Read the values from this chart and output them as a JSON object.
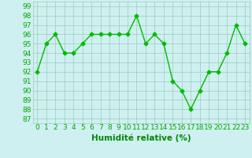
{
  "x": [
    0,
    1,
    2,
    3,
    4,
    5,
    6,
    7,
    8,
    9,
    10,
    11,
    12,
    13,
    14,
    15,
    16,
    17,
    18,
    19,
    20,
    21,
    22,
    23
  ],
  "y": [
    92,
    95,
    96,
    94,
    94,
    95,
    96,
    96,
    96,
    96,
    96,
    98,
    95,
    96,
    95,
    91,
    90,
    88,
    90,
    92,
    92,
    94,
    97,
    95
  ],
  "line_color": "#00bb00",
  "marker": "D",
  "marker_size": 2.5,
  "bg_color": "#cff0f0",
  "grid_color": "#99ccbb",
  "xlabel": "Humidité relative (%)",
  "xlabel_color": "#008800",
  "xlabel_fontsize": 7.5,
  "ylabel_ticks": [
    87,
    88,
    89,
    90,
    91,
    92,
    93,
    94,
    95,
    96,
    97,
    98,
    99
  ],
  "ylim": [
    86.5,
    99.5
  ],
  "xlim": [
    -0.5,
    23.5
  ],
  "tick_color": "#00aa00",
  "tick_fontsize": 6.5,
  "line_width": 1.0
}
